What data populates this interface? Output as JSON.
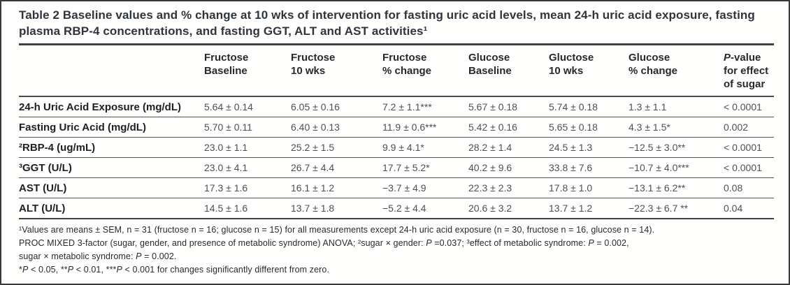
{
  "title": "Table 2 Baseline values and % change at 10 wks of intervention for fasting uric acid levels, mean 24-h uric acid exposure, fasting plasma RBP-4 concentrations, and fasting GGT, ALT and AST activities¹",
  "table": {
    "columns": [
      {
        "lines": [
          "",
          ""
        ]
      },
      {
        "lines": [
          "Fructose",
          "Baseline"
        ]
      },
      {
        "lines": [
          "Fructose",
          "10 wks"
        ]
      },
      {
        "lines": [
          "Fructose",
          "% change"
        ]
      },
      {
        "lines": [
          "Glucose",
          "Baseline"
        ]
      },
      {
        "lines": [
          "Gluctose",
          "10 wks"
        ]
      },
      {
        "lines": [
          "Glucose",
          "% change"
        ]
      },
      {
        "lines": [
          "P-value",
          "for effect",
          "of sugar"
        ]
      }
    ],
    "rows": [
      {
        "label": "24-h Uric Acid Exposure (mg/dL)",
        "cells": [
          "5.64 ± 0.14",
          "6.05 ± 0.16",
          "7.2 ± 1.1***",
          "5.67 ± 0.18",
          "5.74 ± 0.18",
          "1.3 ± 1.1",
          "< 0.0001"
        ]
      },
      {
        "label": "Fasting Uric Acid (mg/dL)",
        "cells": [
          "5.70 ± 0.11",
          "6.40 ± 0.13",
          "11.9 ± 0.6***",
          "5.42 ± 0.16",
          "5.65 ± 0.18",
          "4.3 ± 1.5*",
          "0.002"
        ]
      },
      {
        "label": "²RBP-4 (ug/mL)",
        "cells": [
          "23.0 ± 1.1",
          "25.2 ± 1.5",
          "9.9 ± 4.1*",
          "28.2 ± 1.4",
          "24.5 ± 1.3",
          "−12.5 ± 3.0**",
          "< 0.0001"
        ]
      },
      {
        "label": "³GGT (U/L)",
        "cells": [
          "23.0 ± 4.1",
          "26.7 ± 4.4",
          "17.7 ± 5.2*",
          "40.2 ± 9.6",
          "33.8 ± 7.6",
          "−10.7 ± 4.0***",
          "< 0.0001"
        ]
      },
      {
        "label": "AST (U/L)",
        "cells": [
          "17.3 ± 1.6",
          "16.1 ± 1.2",
          "−3.7 ± 4.9",
          "22.3 ± 2.3",
          "17.8 ± 1.0",
          "−13.1 ± 6.2**",
          "0.08"
        ]
      },
      {
        "label": "ALT (U/L)",
        "cells": [
          "14.5 ± 1.6",
          "13.7 ± 1.8",
          "−5.2 ± 4.4",
          "20.6 ± 3.2",
          "13.7 ± 1.2",
          "−22.3 ± 6.7 **",
          "0.04"
        ]
      }
    ]
  },
  "footnotes": [
    "¹Values are means ± SEM, n = 31 (fructose n = 16; glucose n = 15) for all measurements except 24-h uric acid exposure (n = 30, fructose n = 16, glucose n = 14).",
    "PROC MIXED 3-factor (sugar, gender, and presence of metabolic syndrome) ANOVA; ²sugar × gender: P =0.037; ³effect of metabolic syndrome: P = 0.002,",
    "sugar × metabolic syndrome: P = 0.002.",
    "*P < 0.05, **P < 0.01, ***P < 0.001 for changes significantly different from zero."
  ]
}
